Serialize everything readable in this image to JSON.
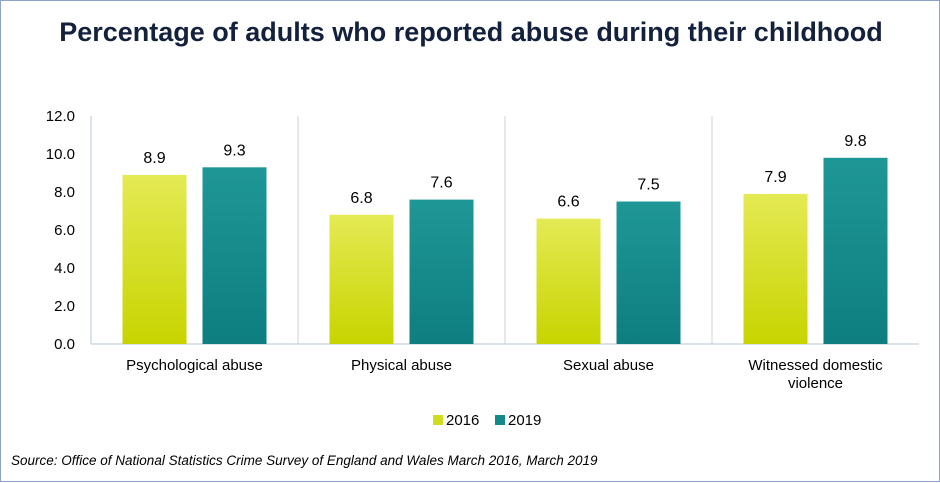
{
  "chart_data": {
    "type": "bar",
    "title": "Percentage of adults who reported abuse during their childhood",
    "categories": [
      "Psychological abuse",
      "Physical abuse",
      "Sexual abuse",
      "Witnessed domestic violence"
    ],
    "series": [
      {
        "name": "2016",
        "values": [
          8.9,
          6.8,
          6.6,
          7.9
        ],
        "color": "#d2dc1e"
      },
      {
        "name": "2019",
        "values": [
          9.3,
          7.6,
          7.5,
          9.8
        ],
        "color": "#15898a"
      }
    ],
    "yticks": [
      "0.0",
      "2.0",
      "4.0",
      "6.0",
      "8.0",
      "10.0",
      "12.0"
    ],
    "ylim": [
      0,
      12
    ],
    "legend": "bottom",
    "source": "Source: Office of National Statistics Crime Survey of England and Wales March 2016, March 2019"
  }
}
